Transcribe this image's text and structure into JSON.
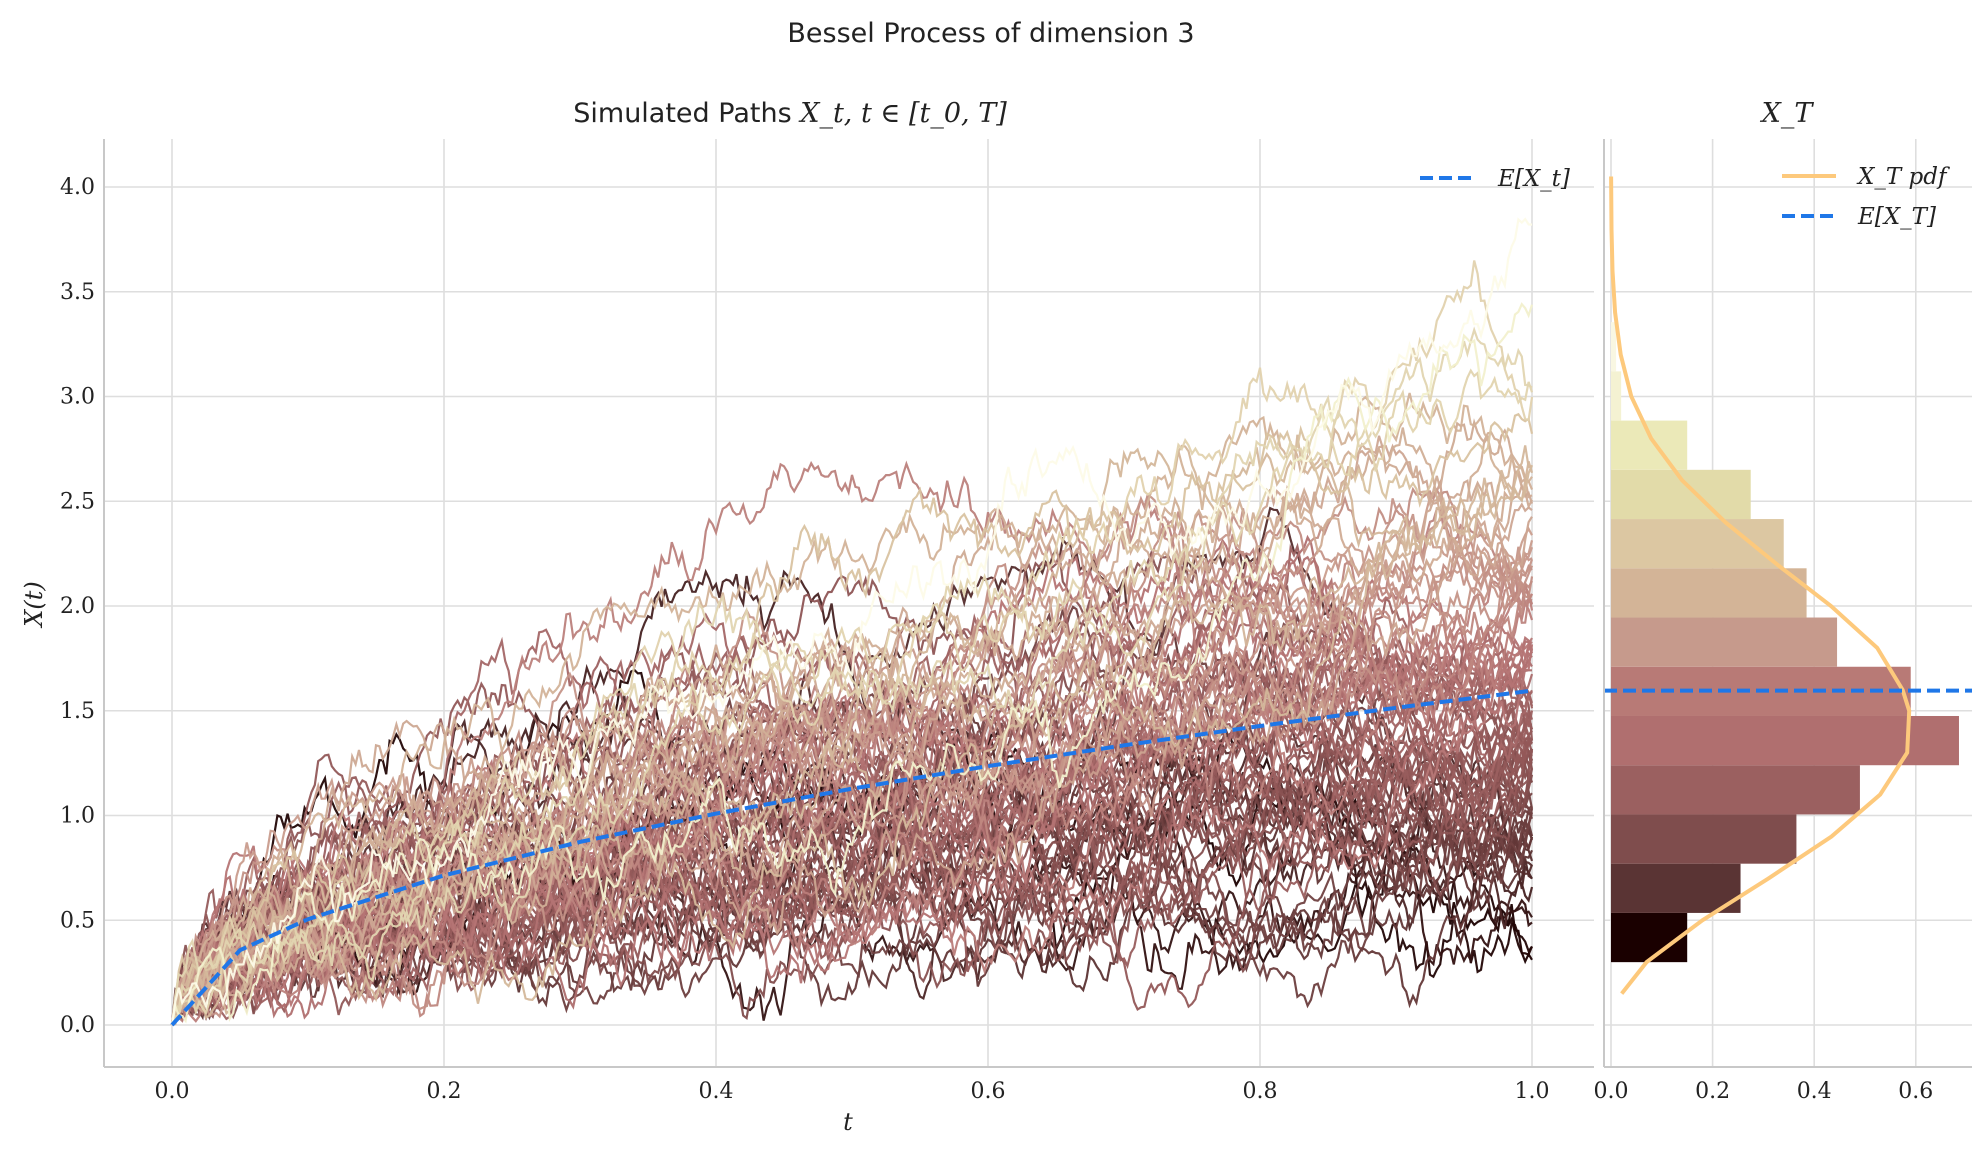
{
  "figure": {
    "suptitle": "Bessel Process of dimension 3"
  },
  "chart_data": [
    {
      "type": "line",
      "title_text": "Simulated Paths ",
      "title_math": "X_t, t ∈ [t_0, T]",
      "xlabel": "t",
      "ylabel": "X(t)",
      "xlim": [
        -0.05,
        1.05
      ],
      "ylim": [
        -0.2,
        4.25
      ],
      "x_ticks": [
        "0.0",
        "0.2",
        "0.4",
        "0.6",
        "0.8",
        "1.0"
      ],
      "y_ticks": [
        "0.0",
        "0.5",
        "1.0",
        "1.5",
        "2.0",
        "2.5",
        "3.0",
        "3.5",
        "4.0"
      ],
      "grid": true,
      "n_paths": 100,
      "path_colormap": [
        "#1a0000",
        "#5a3131",
        "#8f5656",
        "#b57474",
        "#c99c8d",
        "#d9c3a1",
        "#eeecc4",
        "#fdfbe8"
      ],
      "paths_final_values_sample": [
        0.3,
        0.45,
        0.6,
        0.8,
        1.0,
        1.2,
        1.4,
        1.6,
        1.8,
        2.0,
        2.2,
        2.5,
        2.8,
        3.3
      ],
      "mean_curve": {
        "name": "E[X_t]",
        "formula": "1.596 * sqrt(t)",
        "x": [
          0.0,
          0.05,
          0.1,
          0.2,
          0.3,
          0.4,
          0.5,
          0.6,
          0.7,
          0.8,
          0.9,
          1.0
        ],
        "y": [
          0.0,
          0.357,
          0.505,
          0.714,
          0.874,
          1.009,
          1.128,
          1.236,
          1.335,
          1.427,
          1.514,
          1.596
        ],
        "color": "#1f77e8",
        "style": "dashed"
      },
      "legend": {
        "placement": "top-right",
        "entries": [
          "E[X_t]"
        ]
      }
    },
    {
      "type": "histogram",
      "title_math": "X_T",
      "xlim": [
        0.0,
        0.72
      ],
      "ylim": [
        -0.2,
        4.25
      ],
      "x_ticks": [
        "0.0",
        "0.2",
        "0.4",
        "0.6"
      ],
      "orientation": "horizontal",
      "bins": [
        {
          "y0": 0.3,
          "y1": 0.535,
          "density": 0.15,
          "color": "#1a0000"
        },
        {
          "y0": 0.535,
          "y1": 0.77,
          "density": 0.255,
          "color": "#5a3434"
        },
        {
          "y0": 0.77,
          "y1": 1.005,
          "density": 0.365,
          "color": "#7f4d4d"
        },
        {
          "y0": 1.005,
          "y1": 1.24,
          "density": 0.49,
          "color": "#9b6060"
        },
        {
          "y0": 1.24,
          "y1": 1.475,
          "density": 0.685,
          "color": "#b06f6f"
        },
        {
          "y0": 1.475,
          "y1": 1.71,
          "density": 0.59,
          "color": "#b87a76"
        },
        {
          "y0": 1.71,
          "y1": 1.945,
          "density": 0.445,
          "color": "#c69a8c"
        },
        {
          "y0": 1.945,
          "y1": 2.18,
          "density": 0.385,
          "color": "#d3b497"
        },
        {
          "y0": 2.18,
          "y1": 2.415,
          "density": 0.34,
          "color": "#dcc7a2"
        },
        {
          "y0": 2.415,
          "y1": 2.65,
          "density": 0.275,
          "color": "#e2dba9"
        },
        {
          "y0": 2.65,
          "y1": 2.885,
          "density": 0.15,
          "color": "#ebe9b8"
        },
        {
          "y0": 2.885,
          "y1": 3.12,
          "density": 0.02,
          "color": "#f4f2d2"
        },
        {
          "y0": 3.12,
          "y1": 3.355,
          "density": 0.01,
          "color": "#f9f7e2"
        }
      ],
      "pdf": {
        "name": "X_T pdf",
        "color": "#fdc97c",
        "y": [
          0.15,
          0.3,
          0.5,
          0.7,
          0.9,
          1.1,
          1.3,
          1.5,
          1.6,
          1.8,
          2.0,
          2.2,
          2.4,
          2.6,
          2.8,
          3.0,
          3.2,
          3.4,
          3.6,
          3.8,
          4.05
        ],
        "pdf": [
          0.021,
          0.07,
          0.18,
          0.31,
          0.434,
          0.53,
          0.583,
          0.587,
          0.574,
          0.524,
          0.433,
          0.326,
          0.225,
          0.14,
          0.079,
          0.04,
          0.019,
          0.008,
          0.003,
          0.001,
          0.0002
        ]
      },
      "mean_line": {
        "name": "E[X_T]",
        "value": 1.596,
        "color": "#1f77e8",
        "style": "dashed"
      },
      "legend": {
        "placement": "top-right",
        "entries": [
          "X_T pdf",
          "E[X_T]"
        ]
      }
    }
  ]
}
